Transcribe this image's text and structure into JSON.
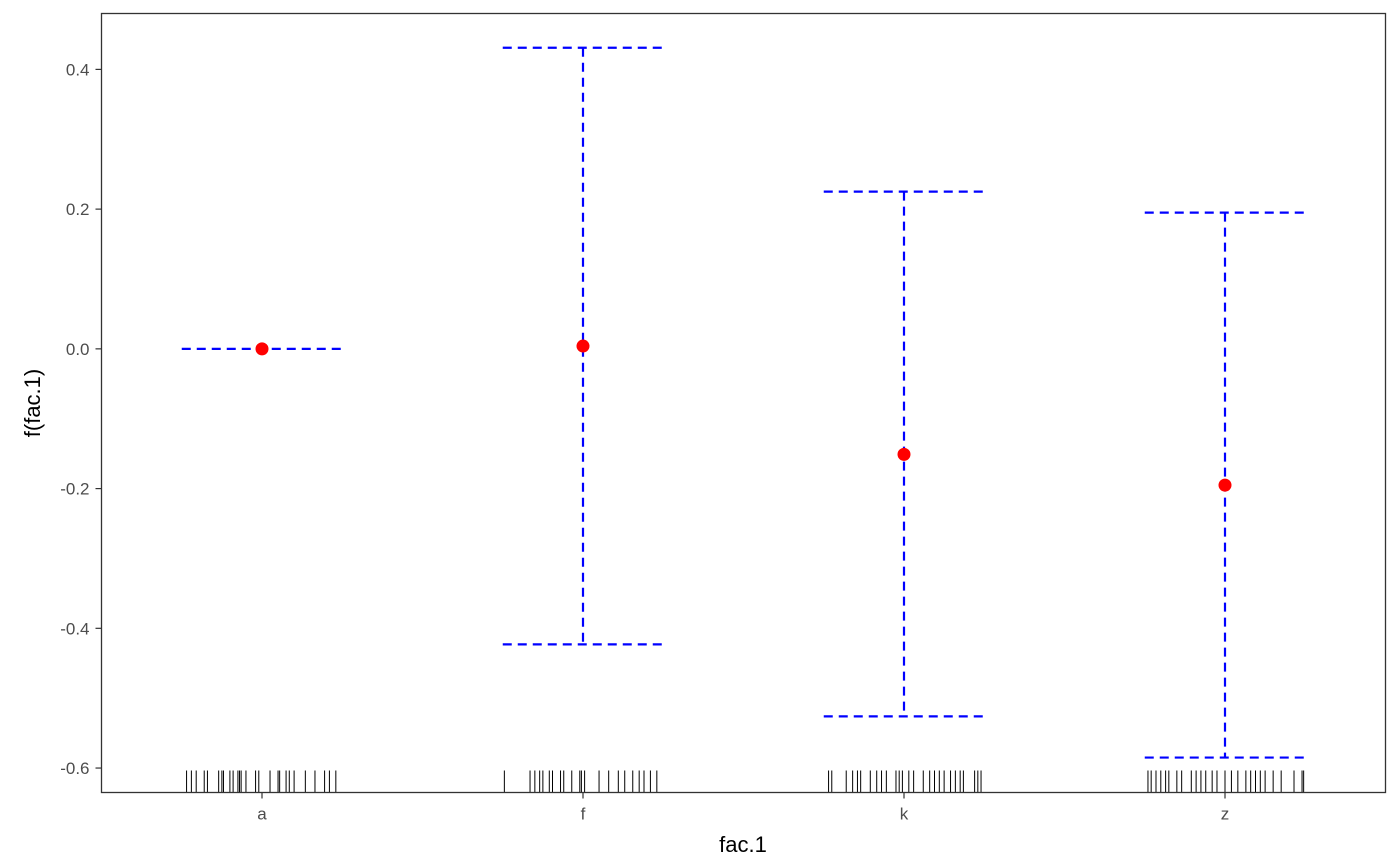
{
  "chart_data": {
    "type": "scatter",
    "title": "",
    "xlabel": "fac.1",
    "ylabel": "f(fac.1)",
    "categories": [
      "a",
      "f",
      "k",
      "z"
    ],
    "estimate": [
      0.0,
      0.004,
      -0.151,
      -0.195
    ],
    "lower": [
      0.0,
      -0.423,
      -0.526,
      -0.585
    ],
    "upper": [
      0.0,
      0.431,
      0.225,
      0.195
    ],
    "ylim": [
      -0.635,
      0.48
    ],
    "yticks": [
      0.4,
      0.2,
      0.0,
      -0.2,
      -0.4,
      -0.6
    ],
    "ytick_labels": [
      "0.4",
      "0.2",
      "0.0",
      "-0.2",
      "-0.4",
      "-0.6"
    ],
    "grid": false,
    "legend": "none",
    "rug": {
      "a": [
        -0.47,
        -0.44,
        -0.41,
        -0.36,
        -0.34,
        -0.27,
        -0.25,
        -0.24,
        -0.2,
        -0.18,
        -0.15,
        -0.14,
        -0.13,
        -0.1,
        -0.04,
        -0.02,
        0.05,
        0.1,
        0.11,
        0.15,
        0.17,
        0.2,
        0.27,
        0.33,
        0.39,
        0.42,
        0.46
      ],
      "f": [
        -0.49,
        -0.33,
        -0.3,
        -0.27,
        -0.25,
        -0.21,
        -0.19,
        -0.14,
        -0.12,
        -0.07,
        -0.02,
        -0.01,
        0.01,
        0.1,
        0.16,
        0.22,
        0.26,
        0.31,
        0.35,
        0.38,
        0.42,
        0.46
      ],
      "k": [
        -0.47,
        -0.45,
        -0.36,
        -0.32,
        -0.29,
        -0.27,
        -0.21,
        -0.17,
        -0.14,
        -0.11,
        -0.05,
        -0.03,
        -0.01,
        0.03,
        0.06,
        0.12,
        0.16,
        0.19,
        0.22,
        0.25,
        0.29,
        0.32,
        0.35,
        0.37,
        0.44,
        0.46,
        0.48
      ],
      "z": [
        -0.48,
        -0.46,
        -0.43,
        -0.4,
        -0.37,
        -0.35,
        -0.3,
        -0.27,
        -0.21,
        -0.18,
        -0.15,
        -0.12,
        -0.08,
        -0.05,
        0.0,
        0.04,
        0.08,
        0.13,
        0.16,
        0.19,
        0.22,
        0.25,
        0.3,
        0.35,
        0.43,
        0.48,
        0.49
      ]
    },
    "colors": {
      "point": "#ff0000",
      "interval": "#0000ff",
      "rug": "#000000",
      "axis": "#333333",
      "panel_border": "#333333"
    }
  }
}
